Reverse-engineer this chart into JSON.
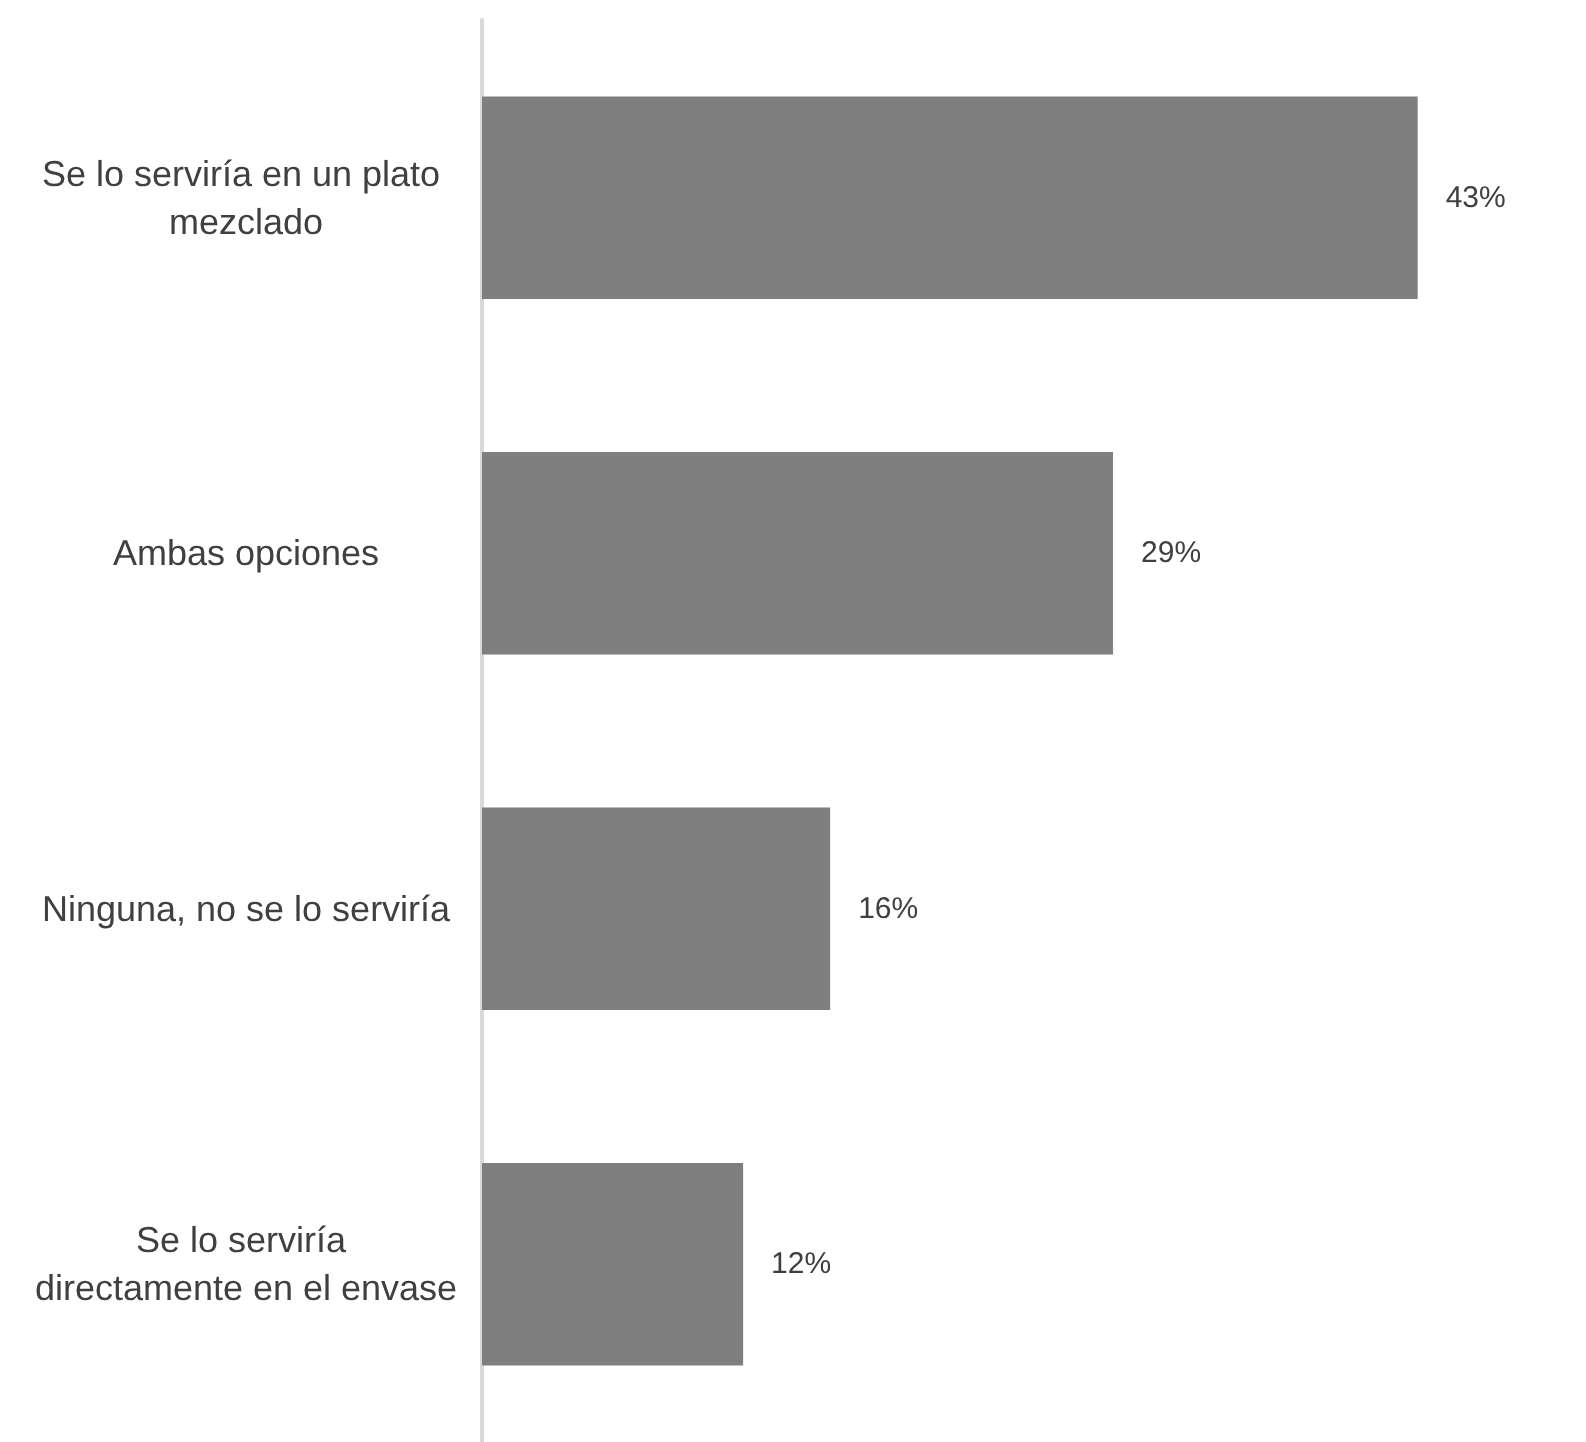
{
  "chart_data": {
    "type": "bar",
    "orientation": "horizontal",
    "categories": [
      "Se lo serviría en un plato mezclado",
      "Ambas opciones",
      "Ninguna, no se lo serviría",
      "Se lo serviría directamente en el envase"
    ],
    "values": [
      43,
      29,
      16,
      12
    ],
    "color": "#7f7f7f",
    "value_labels": [
      "43%",
      "29%",
      "16%",
      "12%"
    ],
    "tick_labels": "y"
  }
}
